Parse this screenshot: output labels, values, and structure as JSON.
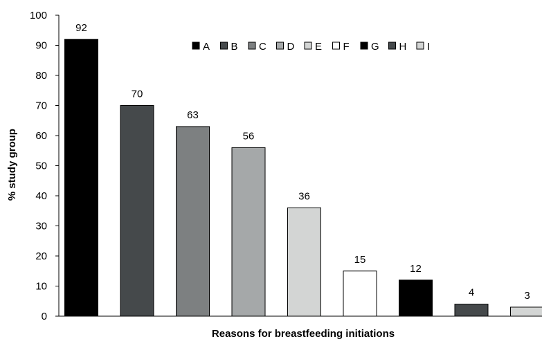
{
  "chart_data": {
    "type": "bar",
    "title": "",
    "xlabel": "Reasons for breastfeeding initiations",
    "ylabel": "% study group",
    "ylim": [
      0,
      100
    ],
    "yticks": [
      "0",
      "10",
      "20",
      "30",
      "40",
      "50",
      "60",
      "70",
      "80",
      "90",
      "100"
    ],
    "categories": [
      "A",
      "B",
      "C",
      "D",
      "E",
      "F",
      "G",
      "H",
      "I"
    ],
    "values": [
      92,
      70,
      63,
      56,
      36,
      15,
      12,
      4,
      3
    ],
    "colors": [
      "#000000",
      "#45494b",
      "#7d8081",
      "#a5a8a9",
      "#d3d5d4",
      "#ffffff",
      "#000000",
      "#45494b",
      "#d3d5d4"
    ],
    "legend_position": "top",
    "grid": false,
    "data_labels": true
  }
}
